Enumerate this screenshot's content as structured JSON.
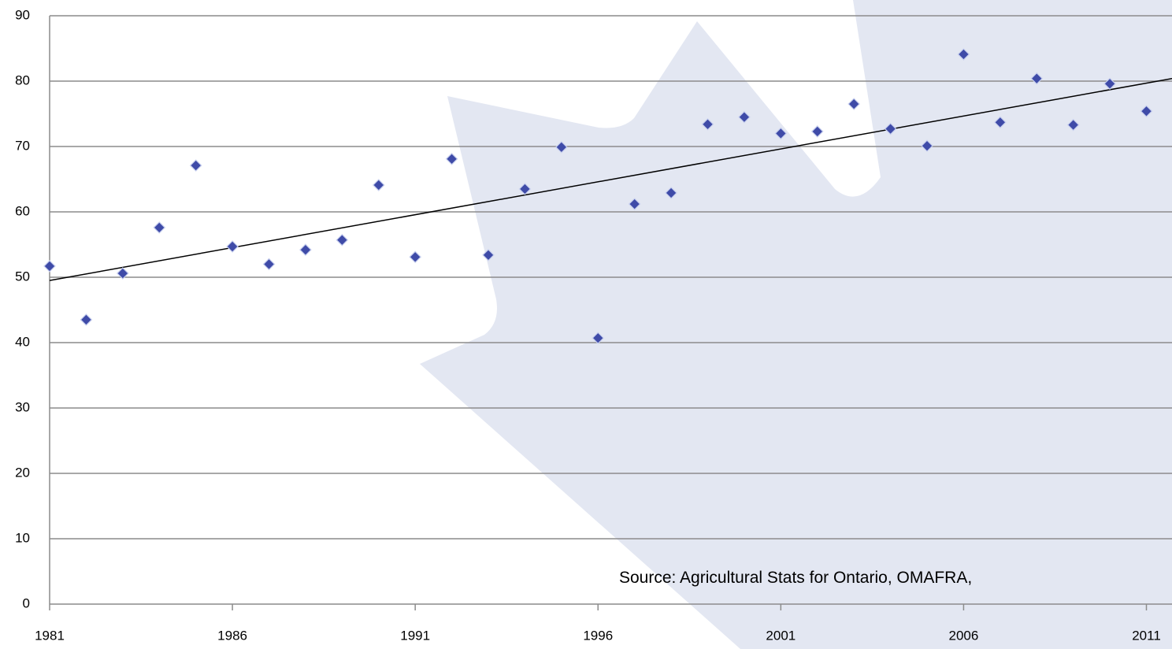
{
  "chart_data": {
    "type": "scatter",
    "x": [
      1981,
      1982,
      1983,
      1984,
      1985,
      1986,
      1987,
      1988,
      1989,
      1990,
      1991,
      1992,
      1993,
      1994,
      1995,
      1996,
      1997,
      1998,
      1999,
      2000,
      2001,
      2002,
      2003,
      2004,
      2005,
      2006,
      2007,
      2008,
      2009,
      2010,
      2011
    ],
    "values": [
      51.7,
      43.5,
      50.6,
      57.6,
      67.1,
      54.7,
      52.0,
      54.2,
      55.7,
      64.1,
      53.1,
      68.1,
      53.4,
      63.5,
      69.9,
      40.7,
      61.2,
      62.9,
      73.4,
      74.5,
      72.0,
      72.3,
      76.5,
      72.7,
      70.1,
      84.1,
      73.7,
      80.4,
      73.3,
      79.6,
      75.4
    ],
    "color": "#3f4ba8",
    "trendline": {
      "x": [
        1981,
        2011.7
      ],
      "values": [
        49.5,
        80.4
      ],
      "color": "#000000"
    },
    "xlim": [
      1981,
      2011.7
    ],
    "xticks": [
      1981,
      1986,
      1991,
      1996,
      2001,
      2006,
      2011
    ],
    "ylim": [
      0,
      90
    ],
    "yticks": [
      0,
      10,
      20,
      30,
      40,
      50,
      60,
      70,
      80,
      90
    ],
    "grid": true,
    "annotation": "Source: Agricultural Stats for Ontario, OMAFRA,"
  }
}
